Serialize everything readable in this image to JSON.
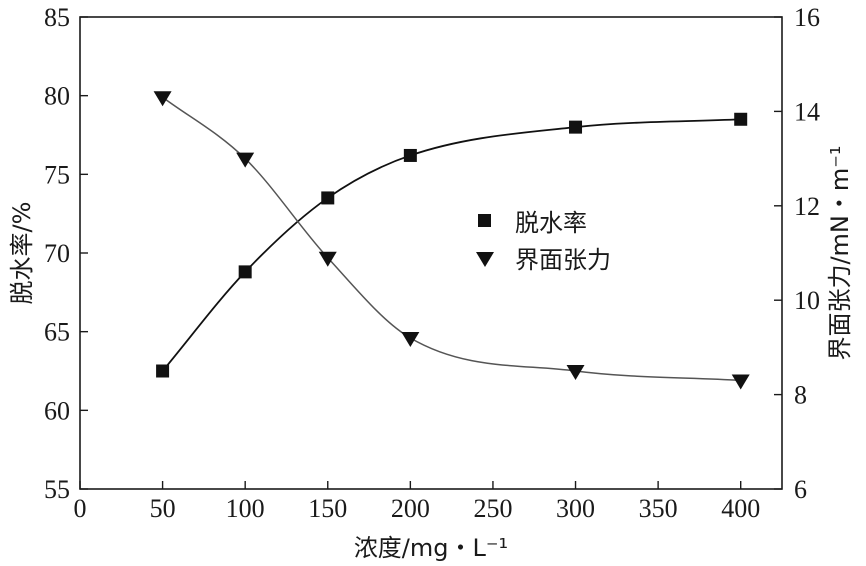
{
  "chart_data": {
    "type": "scatter",
    "x": [
      50,
      100,
      150,
      200,
      300,
      400
    ],
    "xlabel": "浓度/mg・L⁻¹",
    "xlim": [
      0,
      425
    ],
    "xticks": [
      "0",
      "50",
      "100",
      "150",
      "200",
      "250",
      "300",
      "350",
      "400"
    ],
    "ylabel_left": "脱水率/%",
    "ylim_left": [
      55,
      85
    ],
    "yticks_left": [
      "55",
      "60",
      "65",
      "70",
      "75",
      "80",
      "85"
    ],
    "ylabel_right": "界面张力/mN・m⁻¹",
    "ylim_right": [
      6,
      16
    ],
    "yticks_right": [
      "6",
      "8",
      "10",
      "12",
      "14",
      "16"
    ],
    "series": [
      {
        "name": "脱水率",
        "marker": "square",
        "axis": "left",
        "values": [
          62.5,
          68.8,
          73.5,
          76.2,
          78.0,
          78.5
        ]
      },
      {
        "name": "界面张力",
        "marker": "triangle-down",
        "axis": "right",
        "values": [
          14.3,
          13.0,
          10.9,
          9.2,
          8.5,
          8.3
        ]
      }
    ],
    "legend_position": "center-right",
    "grid": false,
    "colors": {
      "marks": "#111111",
      "curve_left": "#111111",
      "curve_right": "#555555"
    }
  }
}
